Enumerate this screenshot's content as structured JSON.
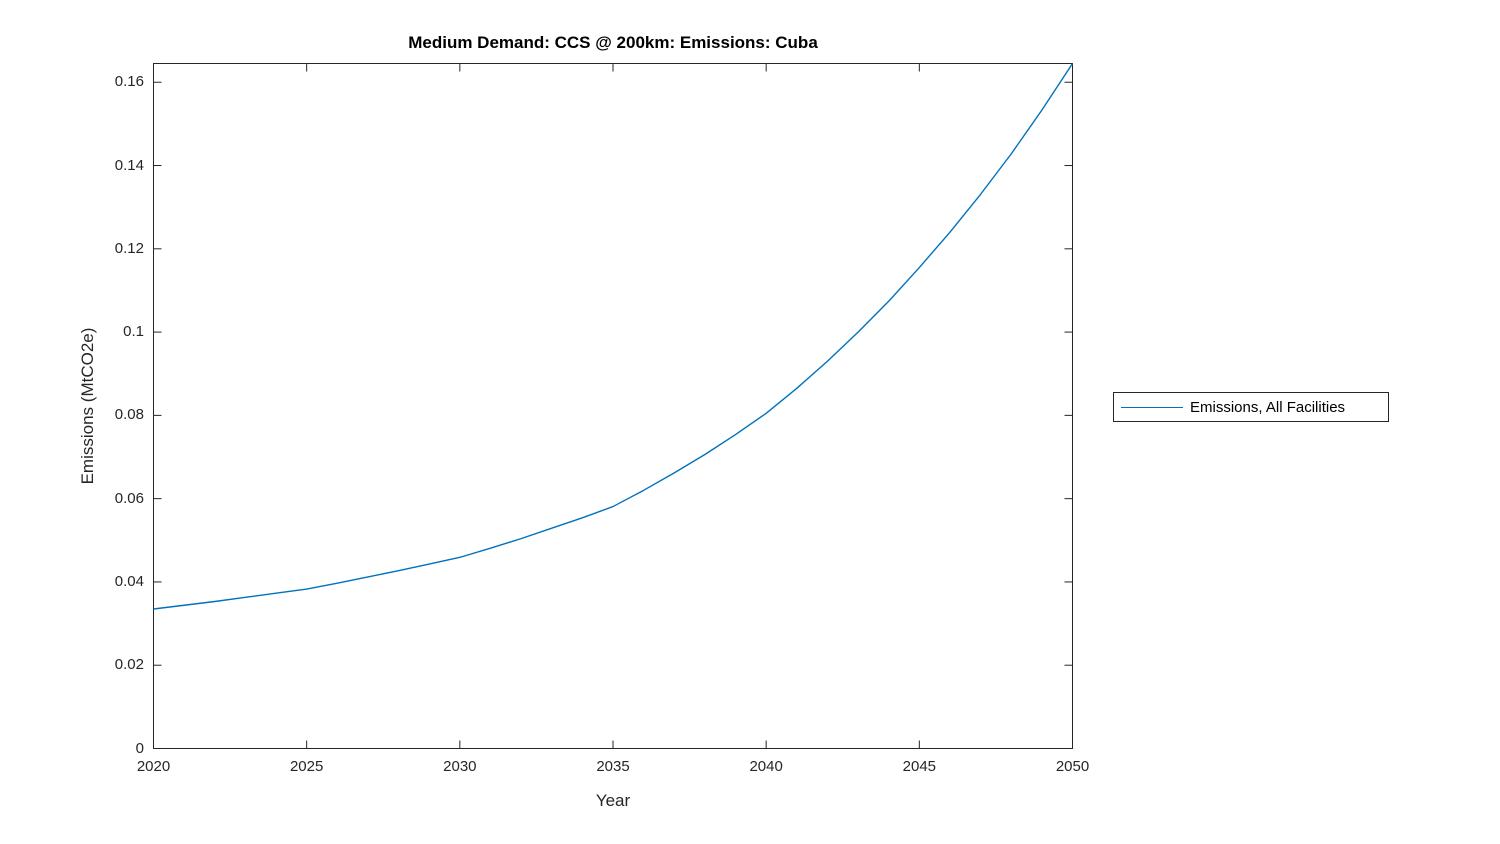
{
  "figure": {
    "background_color": "#ffffff",
    "axes_color": "#262626",
    "tick_text_color": "#262626",
    "title_color": "#000000"
  },
  "chart_data": {
    "type": "line",
    "title": "Medium Demand: CCS @ 200km: Emissions: Cuba",
    "xlabel": "Year",
    "ylabel": "Emissions (MtCO2e)",
    "xlim": [
      2020,
      2050
    ],
    "ylim": [
      0,
      0.1645
    ],
    "grid": false,
    "box": true,
    "legend_position": "outside-right",
    "xticks": {
      "values": [
        2020,
        2025,
        2030,
        2035,
        2040,
        2045,
        2050
      ],
      "labels": [
        "2020",
        "2025",
        "2030",
        "2035",
        "2040",
        "2045",
        "2050"
      ]
    },
    "yticks": {
      "values": [
        0,
        0.02,
        0.04,
        0.06,
        0.08,
        0.1,
        0.12,
        0.14,
        0.16
      ],
      "labels": [
        "0",
        "0.02",
        "0.04",
        "0.06",
        "0.08",
        "0.1",
        "0.12",
        "0.14",
        "0.16"
      ]
    },
    "x": [
      2020,
      2021,
      2022,
      2023,
      2024,
      2025,
      2026,
      2027,
      2028,
      2029,
      2030,
      2031,
      2032,
      2033,
      2034,
      2035,
      2036,
      2037,
      2038,
      2039,
      2040,
      2041,
      2042,
      2043,
      2044,
      2045,
      2046,
      2047,
      2048,
      2049,
      2050
    ],
    "series": [
      {
        "name": "Emissions, All Facilities",
        "color": "#0072BD",
        "values": [
          0.0335,
          0.0344,
          0.0353,
          0.0363,
          0.0373,
          0.0383,
          0.0397,
          0.0412,
          0.0427,
          0.0443,
          0.0459,
          0.0481,
          0.0504,
          0.0529,
          0.0554,
          0.0581,
          0.062,
          0.0662,
          0.0706,
          0.0754,
          0.0805,
          0.0865,
          0.093,
          0.1,
          0.1074,
          0.1155,
          0.124,
          0.1331,
          0.1428,
          0.1533,
          0.1645
        ]
      }
    ]
  }
}
